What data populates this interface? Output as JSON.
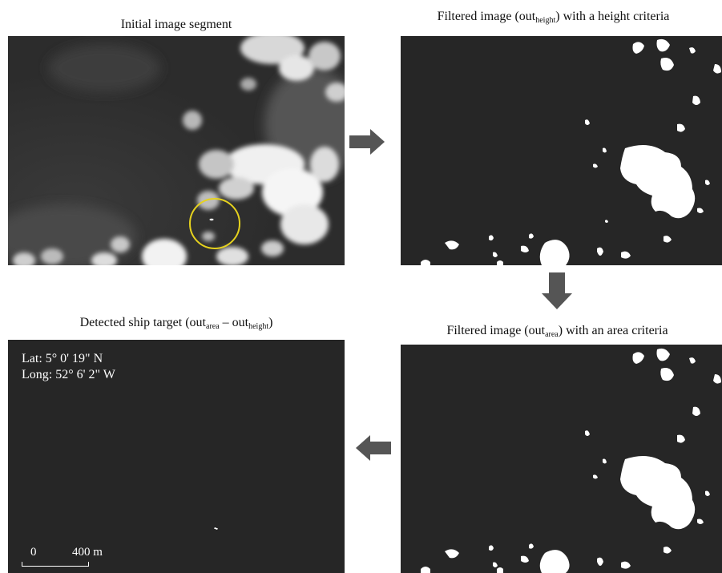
{
  "panels": {
    "initial": {
      "caption": "Initial image segment"
    },
    "height": {
      "caption_pre": "Filtered image (out",
      "caption_sub": "height",
      "caption_post": ") with a height criteria"
    },
    "area": {
      "caption_pre": "Filtered image (out",
      "caption_sub": "area",
      "caption_post": ") with an area criteria"
    },
    "detected": {
      "caption_pre": "Detected ship target (out",
      "caption_sub1": "area",
      "caption_mid": " – out",
      "caption_sub2": "height",
      "caption_post": ")",
      "lat": "Lat: 5° 0' 19\" N",
      "long": "Long: 52° 6' 2\" W",
      "scale_start": "0",
      "scale_end": "400 m"
    }
  },
  "colors": {
    "background_panel": "#262626",
    "highlight_circle": "#e6d21e",
    "arrow": "#555555",
    "mask": "#ffffff"
  },
  "icons": [
    "arrow-right-icon",
    "arrow-down-icon",
    "arrow-left-icon"
  ]
}
